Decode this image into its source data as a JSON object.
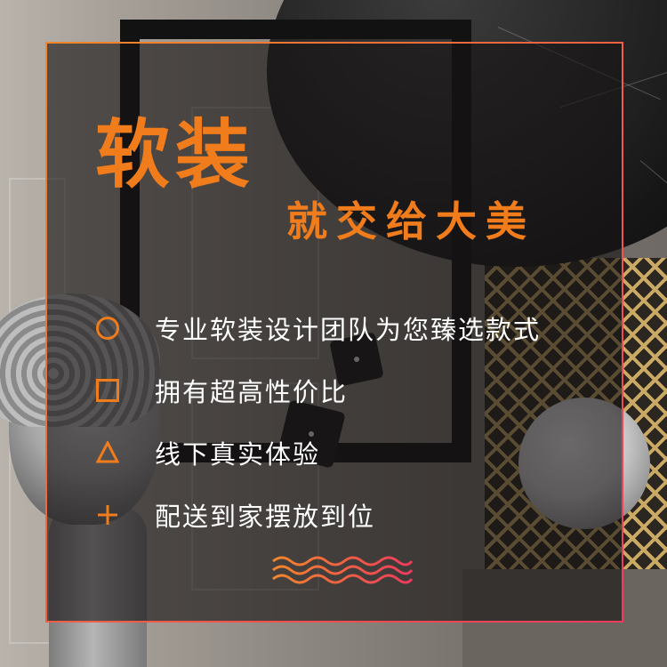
{
  "colors": {
    "accent": "#f07c1c",
    "accent_gradient_end": "#ee3b5e",
    "text": "#ffffff",
    "overlay": "rgba(22,20,20,0.62)"
  },
  "headline": {
    "title": "软装",
    "subtitle": "就交给大美"
  },
  "features": [
    {
      "icon": "circle-icon",
      "text": "专业软装设计团队为您臻选款式"
    },
    {
      "icon": "square-icon",
      "text": "拥有超高性价比"
    },
    {
      "icon": "triangle-icon",
      "text": "线下真实体验"
    },
    {
      "icon": "plus-icon",
      "text": "配送到家摆放到位"
    }
  ],
  "decoration": {
    "icon": "wave-lines-icon"
  }
}
